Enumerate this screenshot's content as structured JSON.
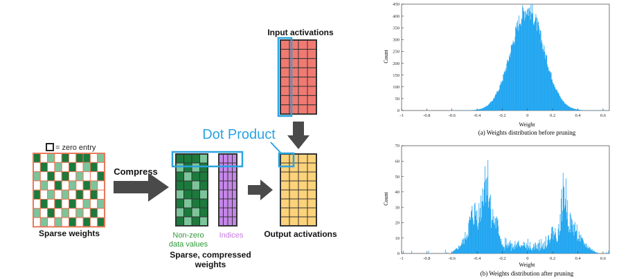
{
  "diagram": {
    "legend_label": "= zero entry",
    "sparse_weights_label": "Sparse weights",
    "compress_label": "Compress",
    "input_activations_label": "Input activations",
    "dot_product_label": "Dot Product",
    "nonzero_label_line1": "Non-zero",
    "nonzero_label_line2": "data values",
    "indices_label": "Indices",
    "sparse_compressed_line1": "Sparse, compressed",
    "sparse_compressed_line2": "weights",
    "output_activations_label": "Output activations",
    "colors": {
      "grid_border": "#e8785a",
      "dark_green": "#1b7a3c",
      "light_green": "#7cc49a",
      "purple": "#c486e8",
      "red": "#f07a72",
      "yellow": "#fcd27a",
      "blue": "#2aa3e0",
      "arrow": "#4a4a4a",
      "nonzero_text": "#2e9a3a",
      "indices_text": "#c879e0"
    }
  },
  "chart_data": [
    {
      "type": "bar",
      "caption": "(a)  Weights distribution before pruning",
      "xlabel": "Weight",
      "ylabel": "Count",
      "xlim": [
        -1.0,
        0.65
      ],
      "ylim": [
        0,
        450
      ],
      "xticks": [
        -1,
        -0.8,
        -0.6,
        -0.4,
        -0.2,
        0,
        0.2,
        0.4,
        0.6
      ],
      "xtick_labels": [
        "-1",
        "-0.8",
        "-0.6",
        "-0.4",
        "-0.2",
        "0",
        "0.2",
        "0.4",
        "0.6"
      ],
      "yticks": [
        0,
        50,
        100,
        150,
        200,
        250,
        300,
        350,
        400,
        450
      ],
      "ytick_labels": [
        "0",
        "50",
        "100",
        "150",
        "200",
        "250",
        "300",
        "350",
        "400",
        "450"
      ],
      "distribution": "single gaussian-like peak",
      "peak_x": 0.0,
      "peak_y": 430,
      "spread": 0.13,
      "color": "#1aa3f0"
    },
    {
      "type": "bar",
      "caption": "(b)  Weights distribution after pruning",
      "xlabel": "Weight",
      "ylabel": "Count",
      "xlim": [
        -1.0,
        0.65
      ],
      "ylim": [
        0,
        70
      ],
      "xticks": [
        -1,
        -0.8,
        -0.6,
        -0.4,
        -0.2,
        0,
        0.2,
        0.4,
        0.6
      ],
      "xtick_labels": [
        "-1",
        "-0.8",
        "-0.6",
        "-0.4",
        "-0.2",
        "0",
        "0.2",
        "0.4",
        "0.6"
      ],
      "yticks": [
        0,
        10,
        20,
        30,
        40,
        50,
        60,
        70
      ],
      "ytick_labels": [
        "0",
        "10",
        "20",
        "30",
        "40",
        "50",
        "60",
        "70"
      ],
      "distribution": "bimodal clusters with gap near zero",
      "peaks": [
        {
          "x": -0.33,
          "y": 60
        },
        {
          "x": -0.42,
          "y": 33
        },
        {
          "x": -0.25,
          "y": 28
        },
        {
          "x": 0.29,
          "y": 47
        },
        {
          "x": 0.2,
          "y": 20
        },
        {
          "x": 0.35,
          "y": 28
        }
      ],
      "color": "#1aa3f0"
    }
  ]
}
